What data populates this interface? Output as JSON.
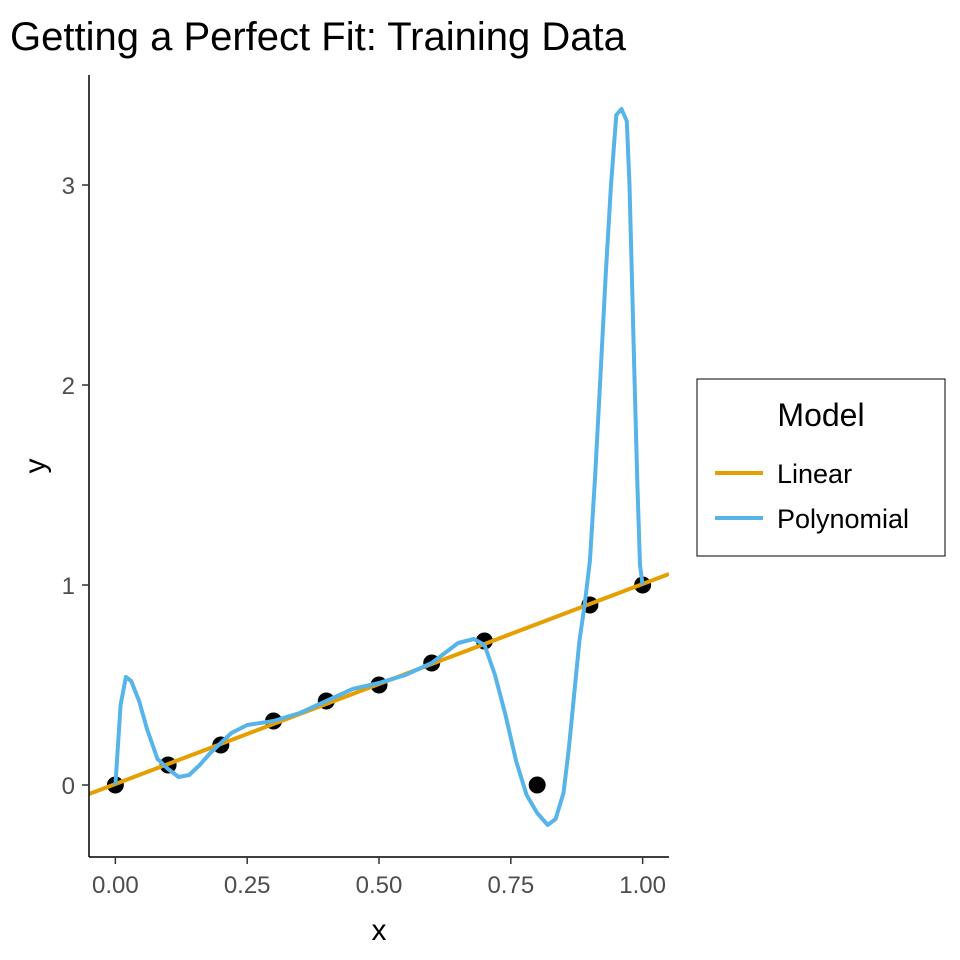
{
  "chart_data": {
    "type": "line",
    "title": "Getting a Perfect Fit: Training Data",
    "xlabel": "x",
    "ylabel": "y",
    "xlim": [
      -0.05,
      1.05
    ],
    "ylim": [
      -0.36,
      3.55
    ],
    "x_ticks": [
      0,
      0.25,
      0.5,
      0.75,
      1
    ],
    "x_tick_labels": [
      "0.00",
      "0.25",
      "0.50",
      "0.75",
      "1.00"
    ],
    "y_ticks": [
      0,
      1,
      2,
      3
    ],
    "y_tick_labels": [
      "0",
      "1",
      "2",
      "3"
    ],
    "grid": false,
    "legend": {
      "title": "Model",
      "position": "right",
      "entries": [
        {
          "label": "Linear",
          "color": "#E69F00"
        },
        {
          "label": "Polynomial",
          "color": "#56B4E9"
        }
      ]
    },
    "points": {
      "color": "#000000",
      "x": [
        0,
        0.1,
        0.2,
        0.3,
        0.4,
        0.5,
        0.6,
        0.7,
        0.8,
        0.9,
        1.0
      ],
      "y": [
        0,
        0.1,
        0.2,
        0.32,
        0.42,
        0.5,
        0.61,
        0.72,
        0,
        0.9,
        1.0
      ]
    },
    "series": [
      {
        "name": "Linear",
        "color": "#E69F00",
        "x": [
          -0.05,
          1.05
        ],
        "y": [
          -0.045,
          1.055
        ]
      },
      {
        "name": "Polynomial",
        "color": "#56B4E9",
        "x": [
          0.0,
          0.01,
          0.02,
          0.03,
          0.045,
          0.06,
          0.08,
          0.1,
          0.12,
          0.14,
          0.16,
          0.18,
          0.2,
          0.22,
          0.25,
          0.3,
          0.35,
          0.4,
          0.45,
          0.5,
          0.55,
          0.6,
          0.65,
          0.68,
          0.7,
          0.72,
          0.74,
          0.76,
          0.78,
          0.8,
          0.82,
          0.835,
          0.85,
          0.86,
          0.87,
          0.88,
          0.89,
          0.9,
          0.91,
          0.92,
          0.93,
          0.94,
          0.95,
          0.96,
          0.97,
          0.975,
          0.98,
          0.985,
          0.99,
          0.995,
          1.0
        ],
        "y": [
          0.0,
          0.4,
          0.54,
          0.52,
          0.42,
          0.28,
          0.13,
          0.08,
          0.04,
          0.05,
          0.1,
          0.16,
          0.21,
          0.26,
          0.3,
          0.32,
          0.36,
          0.42,
          0.48,
          0.51,
          0.55,
          0.61,
          0.71,
          0.73,
          0.7,
          0.55,
          0.35,
          0.12,
          -0.05,
          -0.14,
          -0.2,
          -0.17,
          -0.04,
          0.18,
          0.45,
          0.72,
          0.9,
          1.12,
          1.55,
          2.05,
          2.55,
          3.0,
          3.35,
          3.38,
          3.32,
          3.0,
          2.5,
          2.0,
          1.5,
          1.1,
          1.0
        ]
      }
    ]
  }
}
